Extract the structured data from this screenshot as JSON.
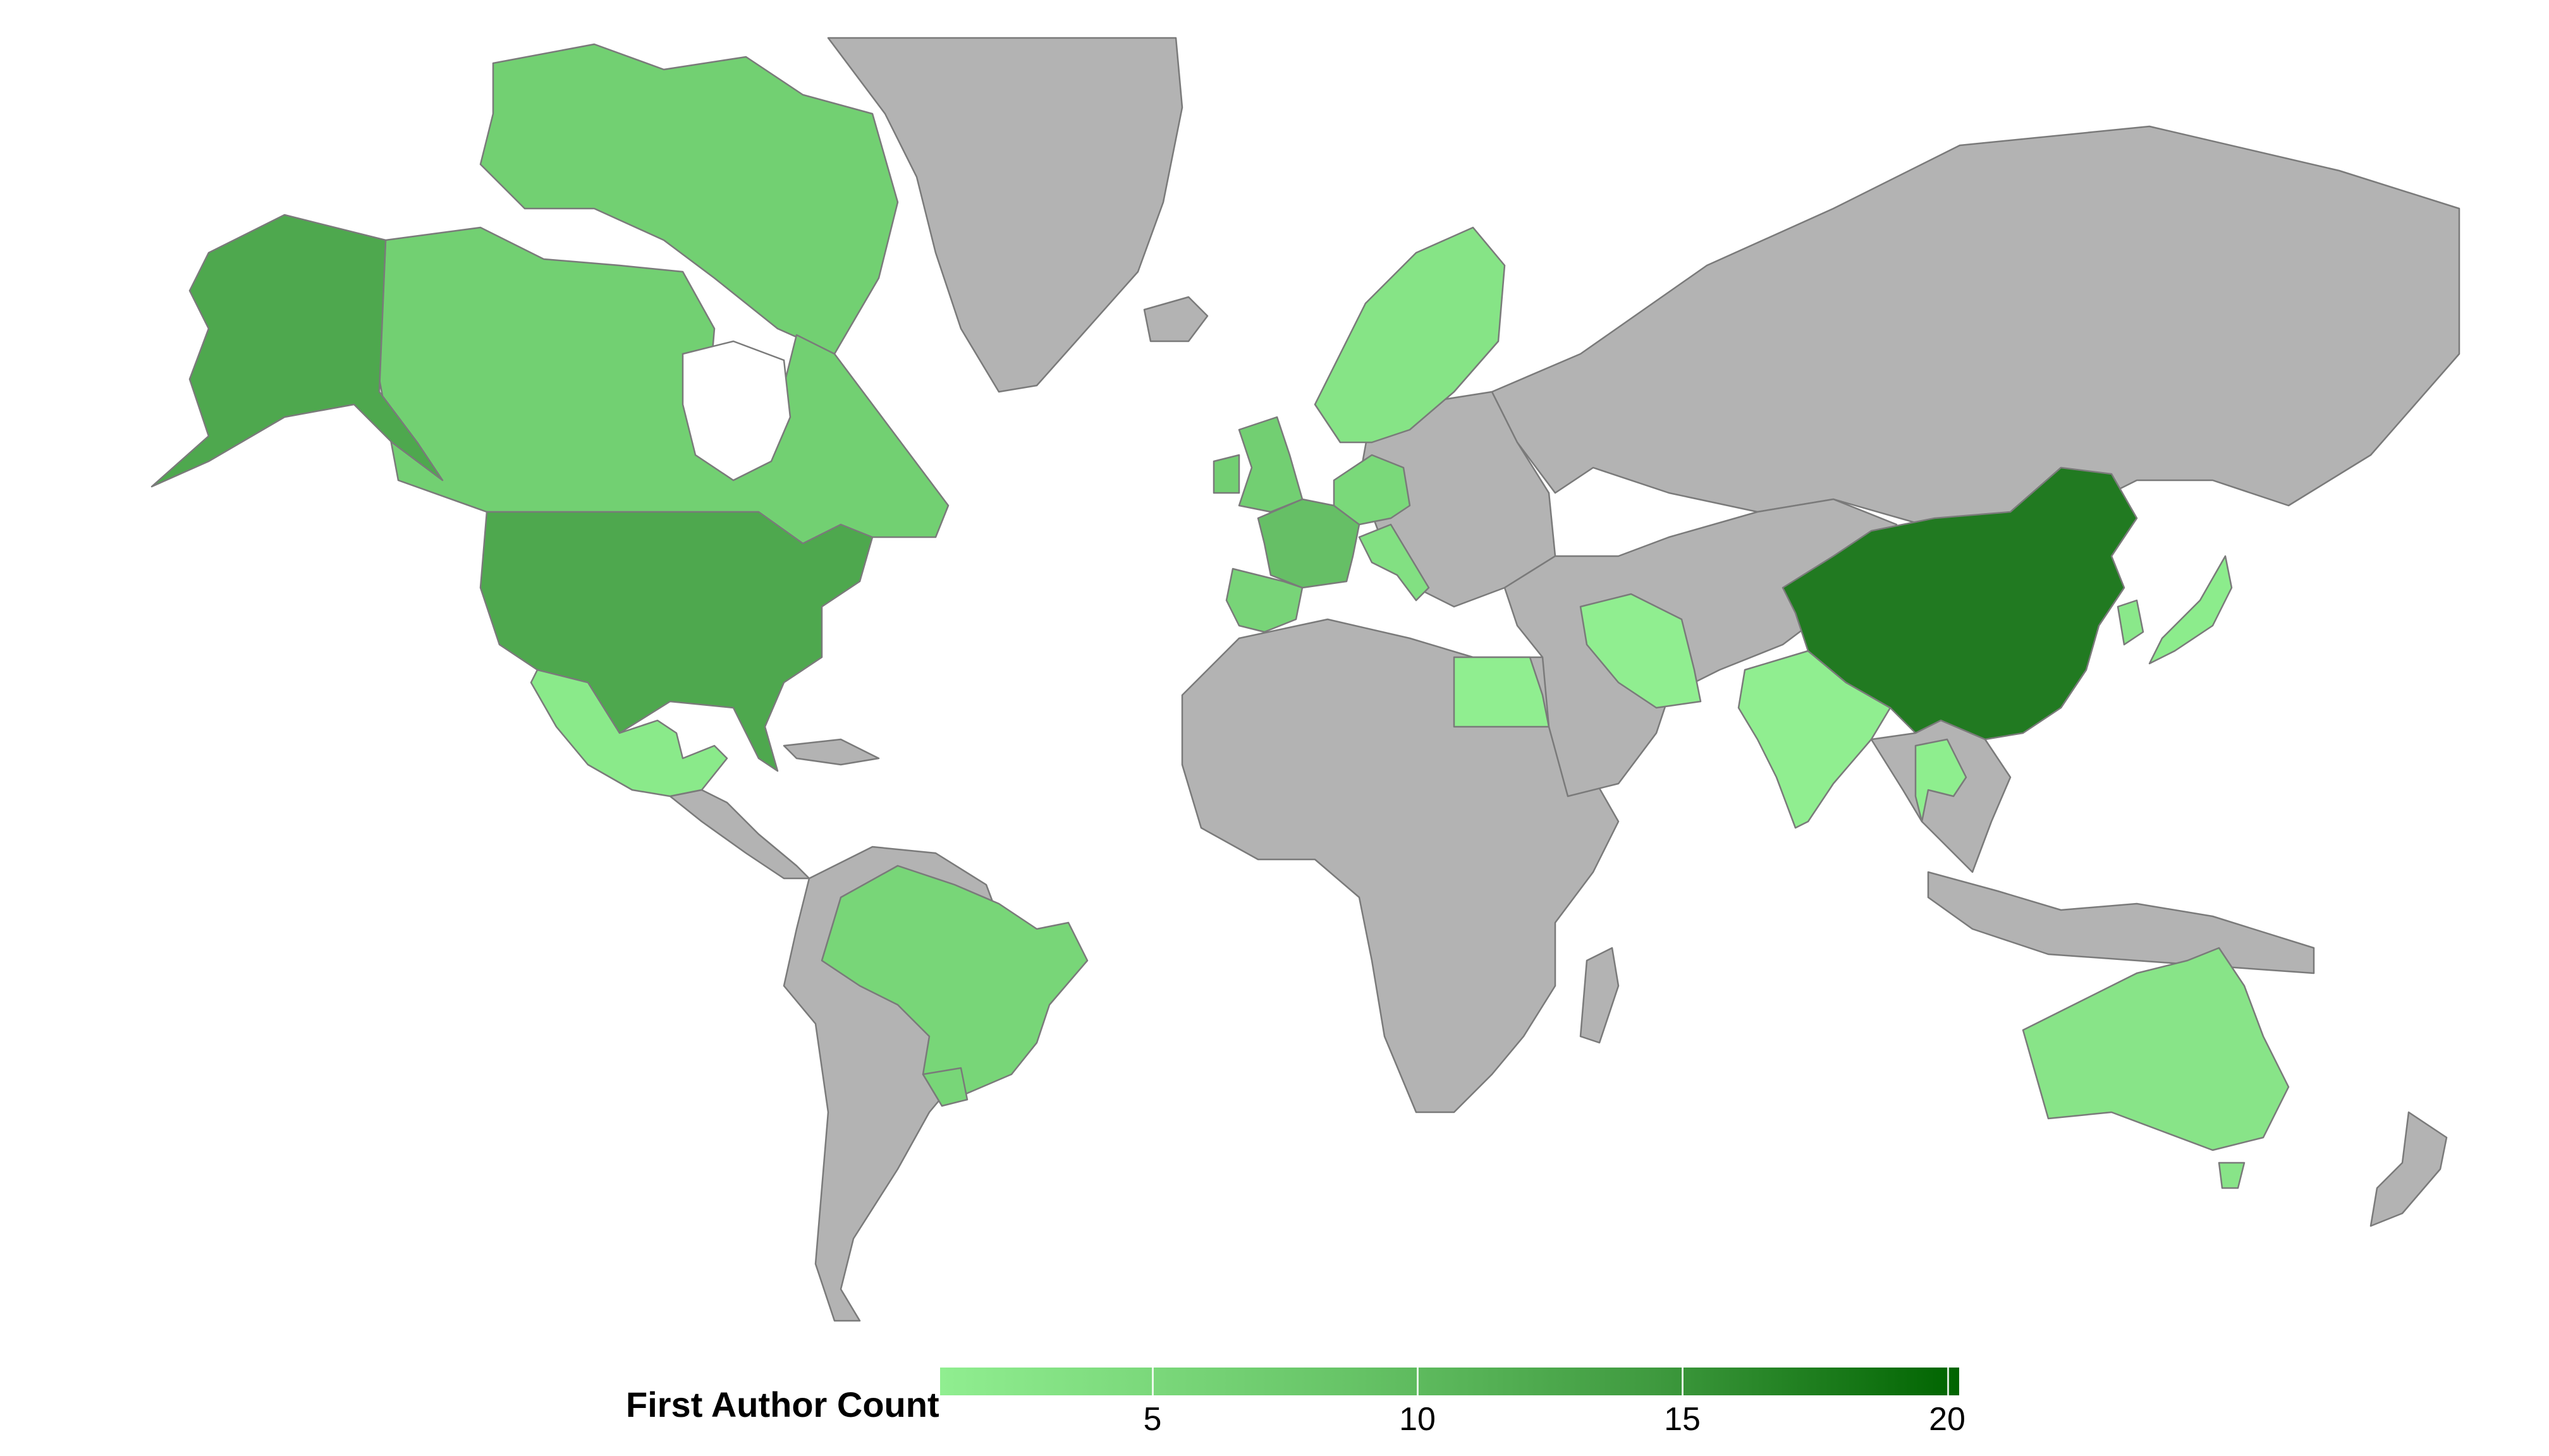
{
  "legend": {
    "title": "First Author Count",
    "ticks": [
      "5",
      "10",
      "15",
      "20"
    ],
    "min": 0,
    "max": 20,
    "color_low": "#90ee90",
    "color_high": "#006400"
  },
  "colors": {
    "no_data": "#b3b3b3",
    "border": "#7a7a7a",
    "background": "#ffffff"
  },
  "countries": {
    "china": {
      "color": "#217a21"
    },
    "usa": {
      "color": "#4ea84e"
    },
    "alaska": {
      "color": "#4ea84e"
    },
    "canada": {
      "color": "#72d072"
    },
    "brazil": {
      "color": "#78d678"
    },
    "france": {
      "color": "#66bf66"
    },
    "uk": {
      "color": "#72cf72"
    },
    "germany": {
      "color": "#7ad97a"
    },
    "spain": {
      "color": "#78d478"
    },
    "australia": {
      "color": "#88e488"
    },
    "mexico": {
      "color": "#8aea8a"
    },
    "india": {
      "color": "#90ee90"
    },
    "iran": {
      "color": "#90ee90"
    },
    "egypt": {
      "color": "#90ee90"
    },
    "japan": {
      "color": "#8cec8c"
    },
    "scandinavia": {
      "color": "#86e486"
    },
    "italy": {
      "color": "#82e082"
    },
    "thailand": {
      "color": "#8eee8e"
    },
    "korea": {
      "color": "#8ae88a"
    }
  }
}
